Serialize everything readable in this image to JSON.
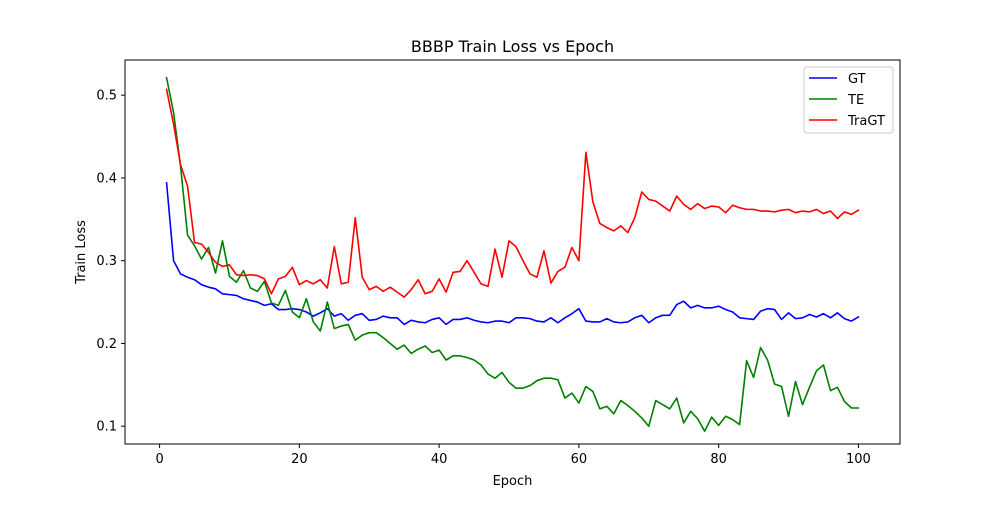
{
  "chart_data": {
    "type": "line",
    "title": "BBBP Train Loss vs Epoch",
    "xlabel": "Epoch",
    "ylabel": "Train Loss",
    "xlim": [
      -4.95,
      105.95
    ],
    "ylim": [
      0.0785,
      0.5425
    ],
    "xticks": [
      0,
      20,
      40,
      60,
      80,
      100
    ],
    "yticks": [
      0.1,
      0.2,
      0.3,
      0.4,
      0.5
    ],
    "xtick_labels": [
      "0",
      "20",
      "40",
      "60",
      "80",
      "100"
    ],
    "ytick_labels": [
      "0.1",
      "0.2",
      "0.3",
      "0.4",
      "0.5"
    ],
    "grid": false,
    "legend_position": "upper right",
    "x": [
      1,
      2,
      3,
      4,
      5,
      6,
      7,
      8,
      9,
      10,
      11,
      12,
      13,
      14,
      15,
      16,
      17,
      18,
      19,
      20,
      21,
      22,
      23,
      24,
      25,
      26,
      27,
      28,
      29,
      30,
      31,
      32,
      33,
      34,
      35,
      36,
      37,
      38,
      39,
      40,
      41,
      42,
      43,
      44,
      45,
      46,
      47,
      48,
      49,
      50,
      51,
      52,
      53,
      54,
      55,
      56,
      57,
      58,
      59,
      60,
      61,
      62,
      63,
      64,
      65,
      66,
      67,
      68,
      69,
      70,
      71,
      72,
      73,
      74,
      75,
      76,
      77,
      78,
      79,
      80,
      81,
      82,
      83,
      84,
      85,
      86,
      87,
      88,
      89,
      90,
      91,
      92,
      93,
      94,
      95,
      96,
      97,
      98,
      99,
      100
    ],
    "series": [
      {
        "name": "GT",
        "color": "#0000ff",
        "values": [
          0.394,
          0.3,
          0.284,
          0.28,
          0.277,
          0.271,
          0.268,
          0.266,
          0.26,
          0.259,
          0.258,
          0.254,
          0.252,
          0.25,
          0.246,
          0.248,
          0.241,
          0.241,
          0.242,
          0.241,
          0.238,
          0.233,
          0.237,
          0.242,
          0.233,
          0.236,
          0.228,
          0.234,
          0.236,
          0.228,
          0.229,
          0.233,
          0.231,
          0.231,
          0.223,
          0.228,
          0.226,
          0.225,
          0.229,
          0.231,
          0.223,
          0.229,
          0.229,
          0.231,
          0.228,
          0.226,
          0.225,
          0.227,
          0.227,
          0.225,
          0.231,
          0.231,
          0.23,
          0.227,
          0.226,
          0.231,
          0.225,
          0.231,
          0.236,
          0.242,
          0.227,
          0.226,
          0.226,
          0.23,
          0.226,
          0.225,
          0.226,
          0.231,
          0.234,
          0.225,
          0.231,
          0.234,
          0.234,
          0.247,
          0.251,
          0.243,
          0.246,
          0.243,
          0.243,
          0.245,
          0.241,
          0.238,
          0.231,
          0.23,
          0.229,
          0.239,
          0.242,
          0.241,
          0.229,
          0.237,
          0.23,
          0.231,
          0.235,
          0.232,
          0.236,
          0.231,
          0.237,
          0.23,
          0.227,
          0.232
        ]
      },
      {
        "name": "TE",
        "color": "#008000",
        "values": [
          0.521,
          0.479,
          0.414,
          0.331,
          0.318,
          0.302,
          0.316,
          0.285,
          0.324,
          0.281,
          0.274,
          0.288,
          0.267,
          0.263,
          0.275,
          0.249,
          0.246,
          0.264,
          0.238,
          0.231,
          0.254,
          0.226,
          0.215,
          0.25,
          0.218,
          0.221,
          0.223,
          0.204,
          0.21,
          0.213,
          0.213,
          0.207,
          0.2,
          0.193,
          0.198,
          0.188,
          0.193,
          0.197,
          0.189,
          0.192,
          0.18,
          0.185,
          0.185,
          0.183,
          0.18,
          0.174,
          0.163,
          0.158,
          0.165,
          0.153,
          0.146,
          0.146,
          0.149,
          0.155,
          0.158,
          0.158,
          0.156,
          0.134,
          0.14,
          0.128,
          0.148,
          0.142,
          0.121,
          0.124,
          0.115,
          0.131,
          0.125,
          0.118,
          0.11,
          0.1,
          0.131,
          0.126,
          0.121,
          0.134,
          0.104,
          0.118,
          0.109,
          0.094,
          0.111,
          0.101,
          0.112,
          0.108,
          0.102,
          0.179,
          0.159,
          0.195,
          0.18,
          0.151,
          0.148,
          0.112,
          0.154,
          0.126,
          0.147,
          0.167,
          0.174,
          0.143,
          0.147,
          0.13,
          0.122,
          0.122
        ]
      },
      {
        "name": "TraGT",
        "color": "#ff0000",
        "values": [
          0.507,
          0.465,
          0.416,
          0.39,
          0.322,
          0.32,
          0.31,
          0.298,
          0.293,
          0.295,
          0.283,
          0.282,
          0.283,
          0.282,
          0.278,
          0.26,
          0.278,
          0.281,
          0.292,
          0.271,
          0.276,
          0.272,
          0.277,
          0.267,
          0.317,
          0.272,
          0.274,
          0.352,
          0.28,
          0.265,
          0.269,
          0.263,
          0.268,
          0.262,
          0.256,
          0.265,
          0.277,
          0.26,
          0.263,
          0.278,
          0.262,
          0.286,
          0.287,
          0.3,
          0.286,
          0.272,
          0.269,
          0.314,
          0.28,
          0.324,
          0.317,
          0.3,
          0.284,
          0.28,
          0.312,
          0.273,
          0.287,
          0.292,
          0.316,
          0.3,
          0.431,
          0.371,
          0.345,
          0.34,
          0.336,
          0.342,
          0.334,
          0.352,
          0.383,
          0.374,
          0.372,
          0.366,
          0.36,
          0.378,
          0.368,
          0.362,
          0.369,
          0.363,
          0.366,
          0.365,
          0.358,
          0.367,
          0.364,
          0.362,
          0.362,
          0.36,
          0.36,
          0.359,
          0.361,
          0.362,
          0.358,
          0.36,
          0.359,
          0.362,
          0.357,
          0.36,
          0.351,
          0.359,
          0.356,
          0.361
        ]
      }
    ]
  }
}
